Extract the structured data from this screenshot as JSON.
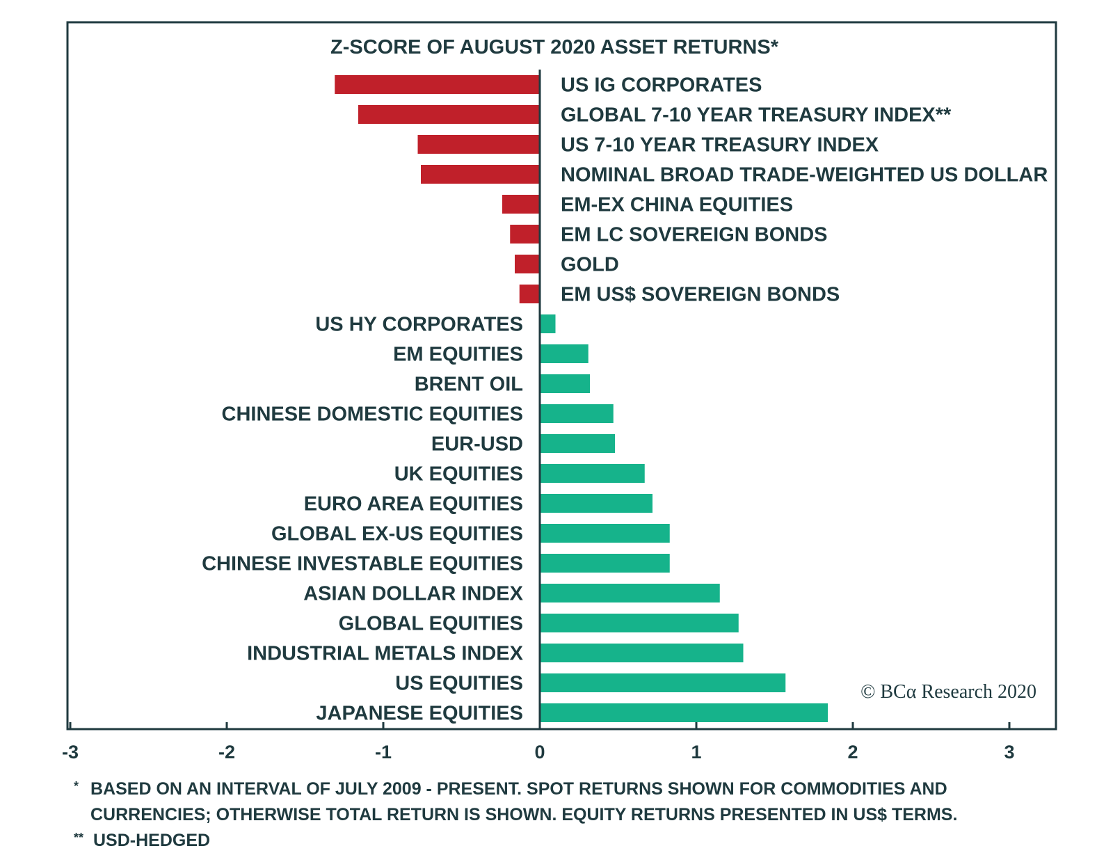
{
  "chart_data": {
    "type": "bar",
    "orientation": "horizontal",
    "title": "Z-SCORE OF AUGUST 2020 ASSET RETURNS*",
    "xlim": [
      -3,
      3
    ],
    "x_ticks": [
      "-3",
      "-2",
      "-1",
      "0",
      "1",
      "2",
      "3"
    ],
    "colors": {
      "negative": "#c0202a",
      "positive": "#16b38b"
    },
    "categories": [
      "US IG CORPORATES",
      "GLOBAL 7-10 YEAR TREASURY INDEX**",
      "US 7-10 YEAR TREASURY INDEX",
      "NOMINAL BROAD TRADE-WEIGHTED US DOLLAR",
      "EM-EX CHINA EQUITIES",
      "EM LC SOVEREIGN BONDS",
      "GOLD",
      "EM US$ SOVEREIGN BONDS",
      "US HY CORPORATES",
      "EM EQUITIES",
      "BRENT OIL",
      "CHINESE DOMESTIC EQUITIES",
      "EUR-USD",
      "UK EQUITIES",
      "EURO AREA EQUITIES",
      "GLOBAL EX-US EQUITIES",
      "CHINESE INVESTABLE EQUITIES",
      "ASIAN DOLLAR INDEX",
      "GLOBAL EQUITIES",
      "INDUSTRIAL METALS INDEX",
      "US EQUITIES",
      "JAPANESE EQUITIES"
    ],
    "values": [
      -1.31,
      -1.16,
      -0.78,
      -0.76,
      -0.24,
      -0.19,
      -0.16,
      -0.13,
      0.1,
      0.31,
      0.32,
      0.47,
      0.48,
      0.67,
      0.72,
      0.83,
      0.83,
      1.15,
      1.27,
      1.3,
      1.57,
      1.84
    ],
    "credit": "© BCα Research 2020",
    "footnotes": [
      {
        "mark": "*",
        "lines": [
          "BASED ON AN INTERVAL OF JULY 2009 - PRESENT. SPOT RETURNS SHOWN FOR COMMODITIES AND",
          "CURRENCIES; OTHERWISE TOTAL RETURN IS SHOWN. EQUITY RETURNS PRESENTED IN US$ TERMS."
        ]
      },
      {
        "mark": "**",
        "lines": [
          "USD-HEDGED"
        ]
      }
    ]
  }
}
